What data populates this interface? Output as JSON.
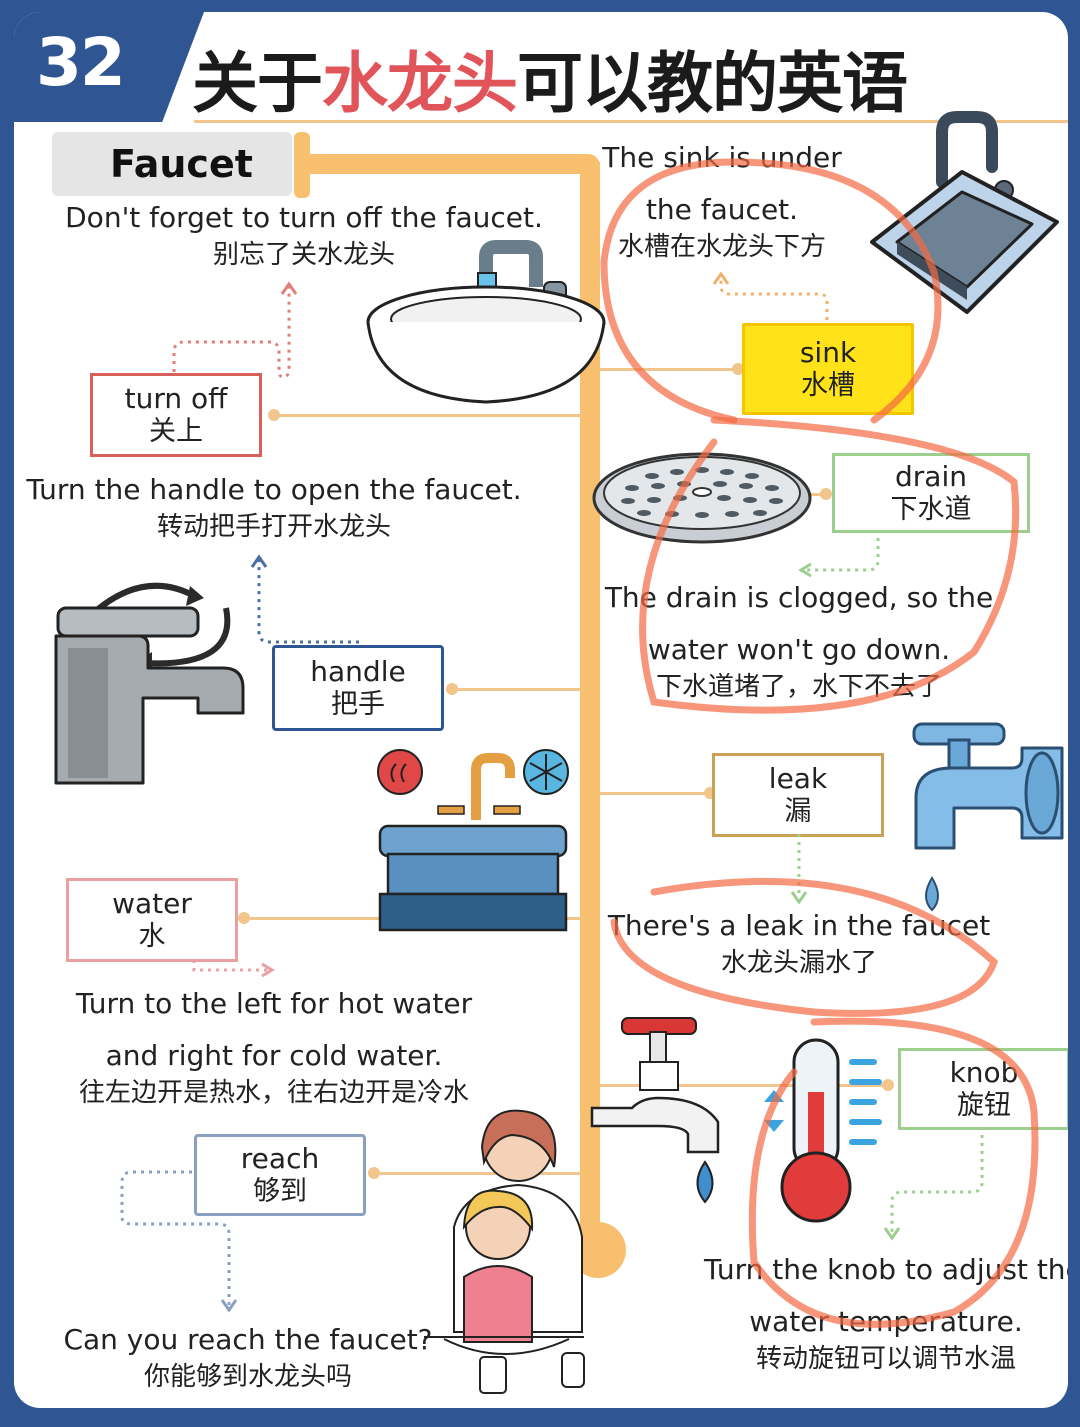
{
  "header": {
    "number": "32",
    "title_parts": [
      "关于",
      "水龙头",
      "可以教的英语"
    ]
  },
  "section_label": "Faucet",
  "items": {
    "turn_off": {
      "term_en": "turn off",
      "term_zh": "关上",
      "sentence_en": "Don't forget to turn off the faucet.",
      "sentence_zh": "别忘了关水龙头"
    },
    "handle": {
      "term_en": "handle",
      "term_zh": "把手",
      "sentence_en": "Turn the handle to open the faucet.",
      "sentence_zh": "转动把手打开水龙头"
    },
    "water": {
      "term_en": "water",
      "term_zh": "水",
      "sentence_en_1": "Turn to the left for hot water",
      "sentence_en_2": "and right for cold water.",
      "sentence_zh": "往左边开是热水，往右边开是冷水"
    },
    "reach": {
      "term_en": "reach",
      "term_zh": "够到",
      "sentence_en": "Can you reach the faucet?",
      "sentence_zh": "你能够到水龙头吗"
    },
    "sink": {
      "term_en": "sink",
      "term_zh": "水槽",
      "sentence_en_1": "The sink is under",
      "sentence_en_2": "the faucet.",
      "sentence_zh": "水槽在水龙头下方"
    },
    "drain": {
      "term_en": "drain",
      "term_zh": "下水道",
      "sentence_en_1": "The drain is clogged, so the",
      "sentence_en_2": "water won't go down.",
      "sentence_zh": "下水道堵了，水下不去了"
    },
    "leak": {
      "term_en": "leak",
      "term_zh": "漏",
      "sentence_en": "There's a leak in the faucet",
      "sentence_zh": "水龙头漏水了"
    },
    "knob": {
      "term_en": "knob",
      "term_zh": "旋钮",
      "sentence_en_1": "Turn the knob to adjust the",
      "sentence_en_2": "water temperature.",
      "sentence_zh": "转动旋钮可以调节水温"
    }
  },
  "colors": {
    "frame_blue": "#2f5592",
    "title_red": "#e0545a",
    "pipe_orange": "#f7bf6e",
    "box_turn_off": "#d9605a",
    "box_handle": "#2f5592",
    "box_water": "#e9a0a0",
    "box_reach": "#8aa0c0",
    "box_sink_fill": "#ffe318",
    "box_drain": "#9ccf8e",
    "box_leak": "#c9a255",
    "box_knob": "#9ccf8e",
    "annotation_orange": "#f46a42"
  },
  "icons": [
    "washbasin-icon",
    "kitchen-sink-icon",
    "drain-grate-icon",
    "lever-faucet-icon",
    "hot-cold-sink-icon",
    "leaking-tap-icon",
    "outdoor-tap-icon",
    "thermometer-icon",
    "mother-child-washing-icon"
  ]
}
